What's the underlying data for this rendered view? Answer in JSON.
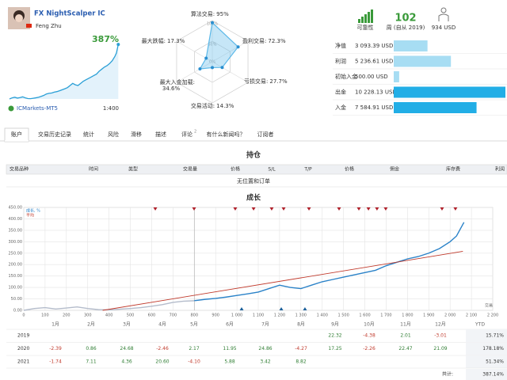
{
  "header": {
    "name": "FX NightScalper IC",
    "author": "Feng Zhu",
    "growth": "387%",
    "broker": "ICMarkets-MT5",
    "leverage": "1:400"
  },
  "radar": {
    "categories": [
      "算法交易:",
      "盈利交易:",
      "亏损交易:",
      "交易活动:",
      "最大入金加载:",
      "最大跌幅:"
    ],
    "values": [
      95,
      72.3,
      27.7,
      14.3,
      34.6,
      17.3
    ],
    "value_labels": [
      "95%",
      "72.3%",
      "27.7%",
      "14.3%",
      "34.6%",
      "17.3%"
    ],
    "rlim": [
      0,
      100
    ],
    "rticks": [
      {
        "value": 100,
        "label": "100%"
      },
      {
        "value": 50,
        "label": "50%"
      },
      {
        "value": 0,
        "label": "0%"
      }
    ],
    "color": "#5bb8e8"
  },
  "stats": {
    "reliability": "可靠性",
    "weeks": "102",
    "weeks_label": "周 (自从 2019)",
    "price": "934 USD"
  },
  "balances": {
    "categories": [
      "净值",
      "利润",
      "初始入金",
      "出金",
      "入金"
    ],
    "values": [
      3093.39,
      5236.61,
      500.0,
      10228.13,
      7584.91
    ],
    "value_labels": [
      "3 093.39 USD",
      "5 236.61 USD",
      "500.00 USD",
      "10 228.13 USD",
      "7 584.91 USD"
    ],
    "colors": [
      "#a7ddf3",
      "#a7ddf3",
      "#a7ddf3",
      "#22aee6",
      "#22aee6"
    ]
  },
  "tabs": [
    "账户",
    "交易历史记录",
    "统计",
    "风险",
    "滑移",
    "描述",
    "评论",
    "有什么新闻吗？",
    "订阅者"
  ],
  "comment_count": "2",
  "positions": {
    "title": "持仓",
    "columns": [
      "交易品种",
      "时间",
      "类型",
      "交易量",
      "价格",
      "S/L",
      "T/P",
      "价格",
      "佣金",
      "库存费",
      "利润"
    ],
    "empty": "无位置和订单"
  },
  "chart_data": {
    "type": "line",
    "title": "成长",
    "xlabel": "交易",
    "xlim": [
      0,
      2200
    ],
    "xticks": [
      0,
      100,
      200,
      300,
      400,
      500,
      600,
      700,
      800,
      900,
      {
        "value": 1000,
        "label": "1 000"
      },
      {
        "value": 1100,
        "label": "1 100"
      },
      {
        "value": 1200,
        "label": "1 200"
      },
      {
        "value": 1300,
        "label": "1 300"
      },
      {
        "value": 1400,
        "label": "1 400"
      },
      {
        "value": 1500,
        "label": "1 500"
      },
      {
        "value": 1600,
        "label": "1 600"
      },
      {
        "value": 1700,
        "label": "1 700"
      },
      {
        "value": 1800,
        "label": "1 800"
      },
      {
        "value": 1900,
        "label": "1 900"
      },
      {
        "value": 2000,
        "label": "2 000"
      },
      {
        "value": 2100,
        "label": "2 100"
      },
      {
        "value": 2200,
        "label": "2 200"
      }
    ],
    "ylim": [
      0,
      450
    ],
    "yticks": [
      {
        "value": 0,
        "label": "0.00"
      },
      {
        "value": 50,
        "label": "50.00"
      },
      {
        "value": 100,
        "label": "100.00"
      },
      {
        "value": 150,
        "label": "150.00"
      },
      {
        "value": 200,
        "label": "200.00"
      },
      {
        "value": 250,
        "label": "250.00"
      },
      {
        "value": 300,
        "label": "300.00"
      },
      {
        "value": 350,
        "label": "350.00"
      },
      {
        "value": 400,
        "label": "400.00"
      },
      {
        "value": 450,
        "label": "450.00"
      }
    ],
    "grid": true,
    "series": [
      {
        "color": "#b4bccb",
        "x": [
          0,
          50,
          100,
          150,
          200,
          250,
          300,
          350,
          400,
          450,
          500,
          550,
          600,
          650,
          700,
          750,
          800
        ],
        "values": [
          0,
          8,
          12,
          6,
          10,
          15,
          8,
          3,
          2,
          5,
          8,
          12,
          18,
          25,
          35,
          40,
          42
        ]
      },
      {
        "name": "成长, %",
        "color": "#2a82c8",
        "x": [
          800,
          850,
          900,
          950,
          1000,
          1050,
          1100,
          1150,
          1200,
          1250,
          1300,
          1350,
          1400,
          1450,
          1500,
          1550,
          1600,
          1650,
          1700,
          1750,
          1800,
          1850,
          1900,
          1950,
          2000,
          2030,
          2065
        ],
        "values": [
          42,
          48,
          52,
          58,
          65,
          72,
          80,
          95,
          110,
          100,
          95,
          110,
          125,
          135,
          145,
          155,
          165,
          175,
          195,
          210,
          225,
          235,
          250,
          270,
          300,
          325,
          385
        ]
      },
      {
        "name": "平均",
        "color": "#c0392b",
        "x": [
          370,
          2060
        ],
        "values": [
          0,
          258
        ]
      }
    ],
    "withdrawals": {
      "color": "#b0202a",
      "x": [
        617,
        799,
        992,
        1078,
        1163,
        1219,
        1338,
        1479,
        1572,
        1617,
        1657,
        1698,
        1962,
        2025
      ]
    },
    "deposits": {
      "color": "#1a5f9a",
      "x": [
        1022,
        1208,
        1319
      ]
    }
  },
  "monthly": {
    "months": [
      "1月",
      "2月",
      "3月",
      "4月",
      "5月",
      "6月",
      "7月",
      "8月",
      "9月",
      "10月",
      "11月",
      "12月"
    ],
    "ytd_header": "YTD",
    "rows": [
      {
        "year": "2019",
        "values": [
          null,
          null,
          null,
          null,
          null,
          null,
          null,
          null,
          "22.32",
          "-4.38",
          "2.01",
          "-3.01"
        ],
        "ytd": "15.71%"
      },
      {
        "year": "2020",
        "values": [
          "-2.39",
          "0.86",
          "24.68",
          "-2.46",
          "2.17",
          "11.95",
          "24.86",
          "-4.27",
          "17.25",
          "-2.26",
          "22.47",
          "21.09"
        ],
        "ytd": "178.18%"
      },
      {
        "year": "2021",
        "values": [
          "-1.74",
          "7.11",
          "4.36",
          "20.60",
          "-4.10",
          "5.88",
          "3.42",
          "8.82",
          null,
          null,
          null,
          null
        ],
        "ytd": "51.34%"
      }
    ],
    "total_label": "共计:",
    "total": "387.14%"
  }
}
